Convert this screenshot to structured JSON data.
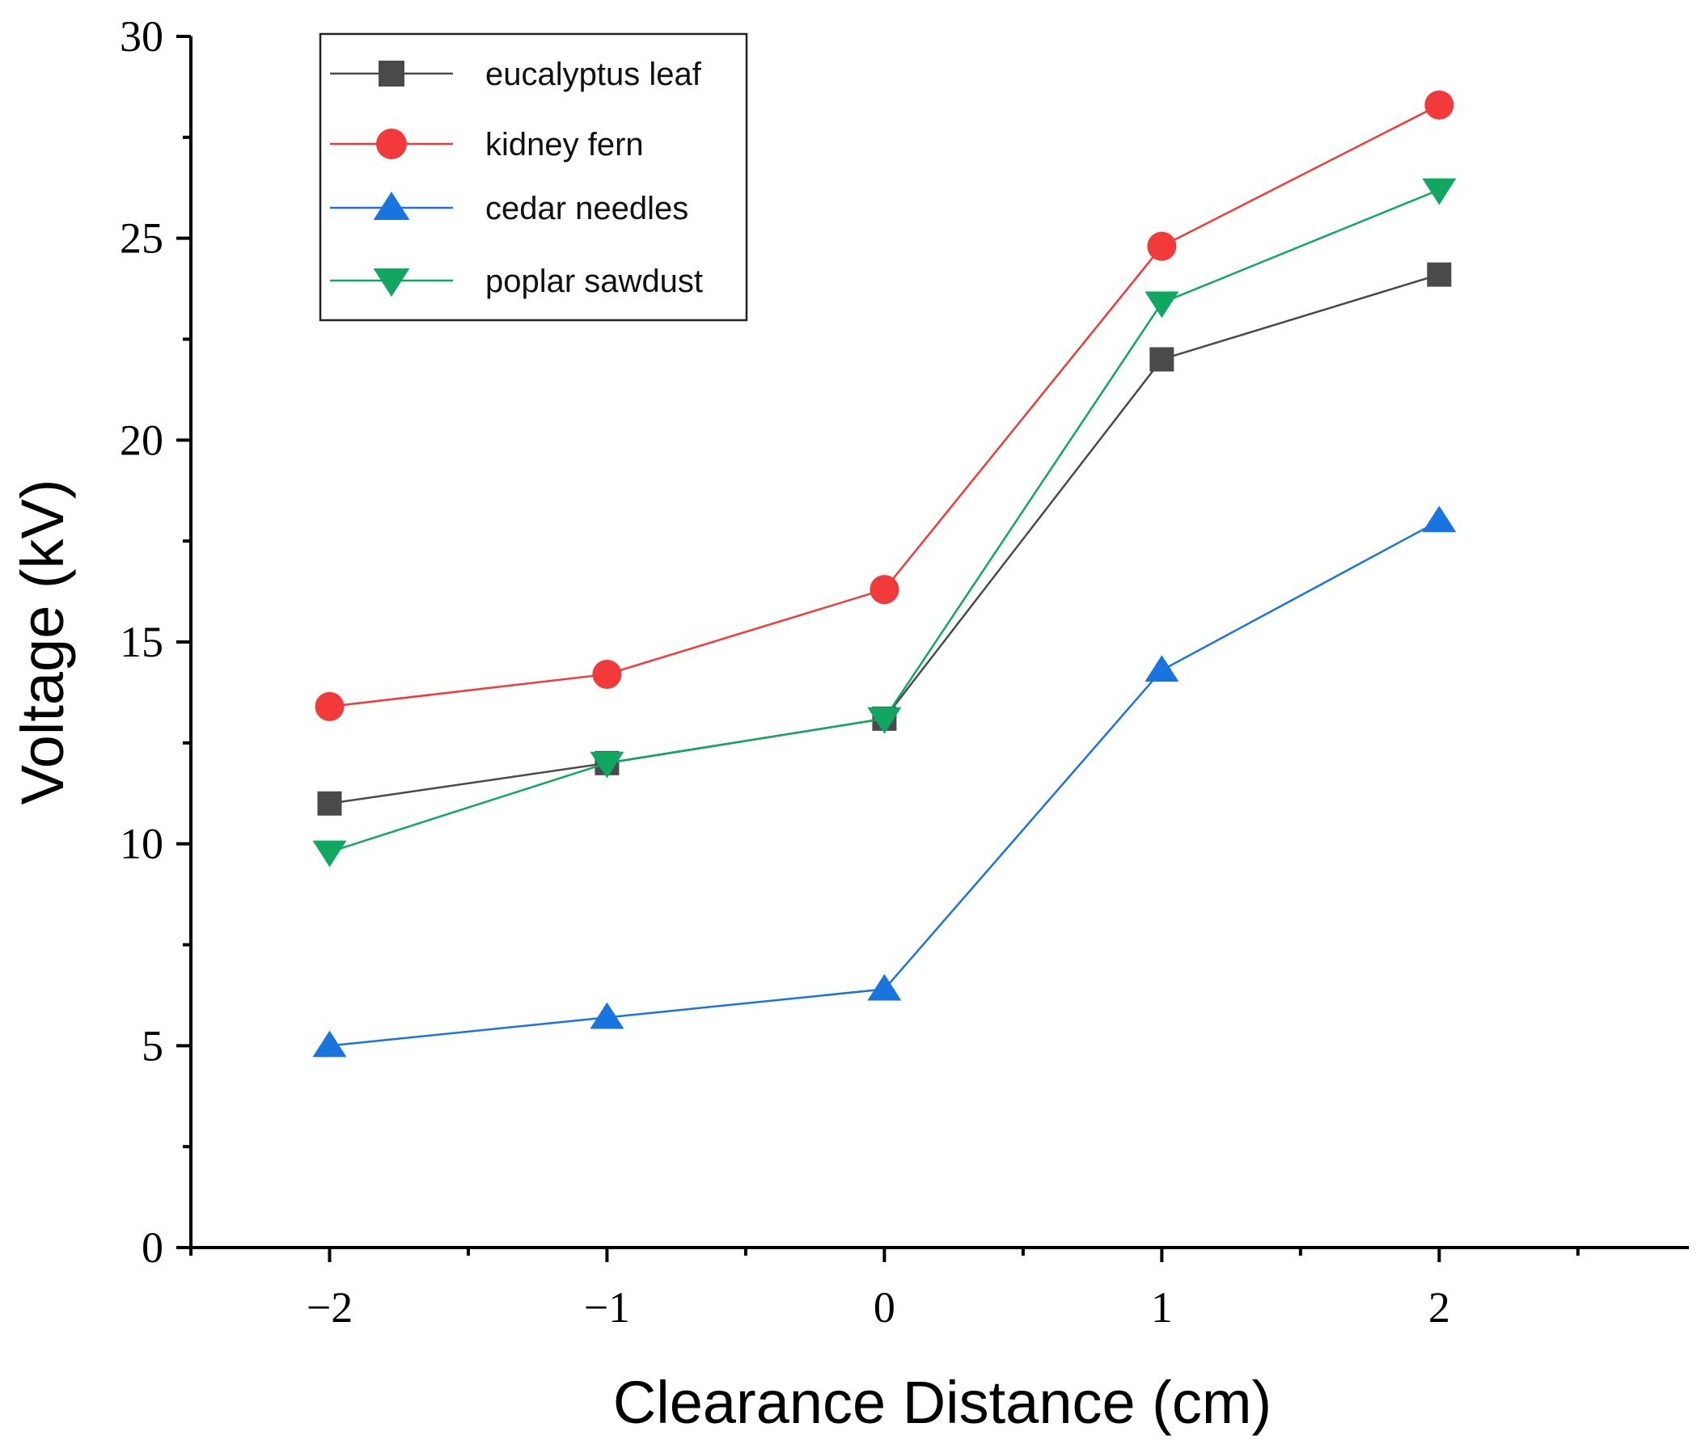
{
  "chart_data": {
    "type": "line",
    "xlabel": "Clearance Distance (cm)",
    "ylabel": "Voltage (kV)",
    "x": [
      -2,
      -1,
      0,
      1,
      2
    ],
    "xlim": [
      -2.5,
      2.9
    ],
    "ylim": [
      0,
      30
    ],
    "xticks": [
      -2,
      -1,
      0,
      1,
      2
    ],
    "xtick_labels": [
      "−2",
      "−1",
      "0",
      "1",
      "2"
    ],
    "yticks": [
      0,
      5,
      10,
      15,
      20,
      25,
      30
    ],
    "ytick_labels": [
      "0",
      "5",
      "10",
      "15",
      "20",
      "25",
      "30"
    ],
    "grid": false,
    "legend_position": "top-left",
    "series": [
      {
        "name": "eucalyptus leaf",
        "marker": "square",
        "color": "#4a4a4a",
        "values": [
          11.0,
          12.0,
          13.1,
          22.0,
          24.1
        ]
      },
      {
        "name": "kidney fern",
        "marker": "circle",
        "color": "#f23a3a",
        "values": [
          13.4,
          14.2,
          16.3,
          24.8,
          28.3
        ]
      },
      {
        "name": "cedar needles",
        "marker": "triangle-up",
        "color": "#1a74e0",
        "values": [
          5.0,
          5.7,
          6.4,
          14.3,
          18.0
        ]
      },
      {
        "name": "poplar sawdust",
        "marker": "triangle-down",
        "color": "#10a860",
        "values": [
          9.8,
          12.0,
          13.1,
          23.4,
          26.2
        ]
      }
    ]
  }
}
